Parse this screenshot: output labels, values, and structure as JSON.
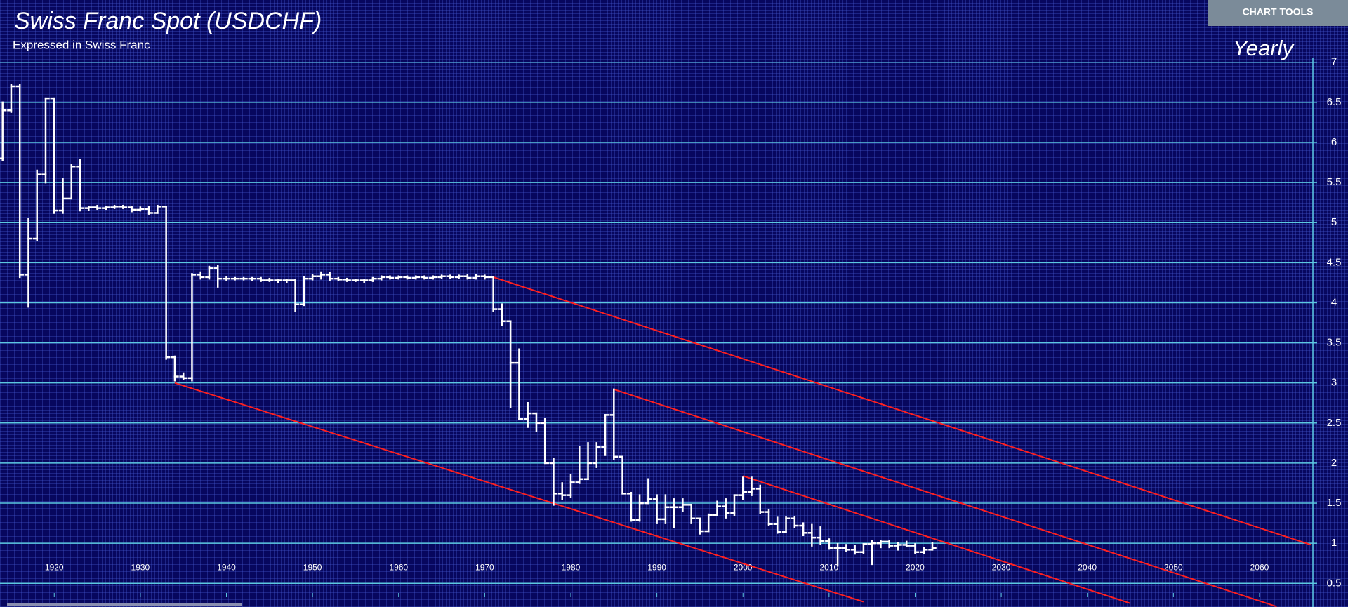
{
  "chart_data": {
    "type": "ohlc",
    "title": "Swiss Franc Spot (USDCHF)",
    "subtitle": "Expressed in Swiss Franc",
    "period": "Yearly",
    "color": "#ffffff",
    "x": [
      1914,
      1915,
      1916,
      1917,
      1918,
      1919,
      1920,
      1921,
      1922,
      1923,
      1924,
      1925,
      1926,
      1927,
      1928,
      1929,
      1930,
      1931,
      1932,
      1933,
      1934,
      1935,
      1936,
      1937,
      1938,
      1939,
      1940,
      1941,
      1942,
      1943,
      1944,
      1945,
      1946,
      1947,
      1948,
      1949,
      1950,
      1951,
      1952,
      1953,
      1954,
      1955,
      1956,
      1957,
      1958,
      1959,
      1960,
      1961,
      1962,
      1963,
      1964,
      1965,
      1966,
      1967,
      1968,
      1969,
      1970,
      1971,
      1972,
      1973,
      1974,
      1975,
      1976,
      1977,
      1978,
      1979,
      1980,
      1981,
      1982,
      1983,
      1984,
      1985,
      1986,
      1987,
      1988,
      1989,
      1990,
      1991,
      1992,
      1993,
      1994,
      1995,
      1996,
      1997,
      1998,
      1999,
      2000,
      2001,
      2002,
      2003,
      2004,
      2005,
      2006,
      2007,
      2008,
      2009,
      2010,
      2011,
      2012,
      2013,
      2014,
      2015,
      2016,
      2017,
      2018,
      2019,
      2020,
      2021,
      2022
    ],
    "values": [
      [
        5.8,
        6.5,
        5.78,
        6.4
      ],
      [
        6.4,
        6.72,
        6.38,
        6.7
      ],
      [
        6.7,
        6.72,
        4.32,
        4.35
      ],
      [
        4.35,
        5.05,
        3.95,
        4.8
      ],
      [
        4.8,
        5.65,
        4.78,
        5.6
      ],
      [
        5.6,
        6.55,
        5.5,
        6.55
      ],
      [
        6.55,
        6.55,
        5.12,
        5.15
      ],
      [
        5.15,
        5.55,
        5.12,
        5.3
      ],
      [
        5.3,
        5.72,
        5.3,
        5.7
      ],
      [
        5.7,
        5.78,
        5.15,
        5.18
      ],
      [
        5.18,
        5.2,
        5.16,
        5.19
      ],
      [
        5.19,
        5.21,
        5.17,
        5.18
      ],
      [
        5.18,
        5.2,
        5.17,
        5.19
      ],
      [
        5.19,
        5.21,
        5.18,
        5.2
      ],
      [
        5.2,
        5.21,
        5.18,
        5.19
      ],
      [
        5.19,
        5.2,
        5.14,
        5.16
      ],
      [
        5.16,
        5.19,
        5.15,
        5.17
      ],
      [
        5.17,
        5.2,
        5.11,
        5.12
      ],
      [
        5.12,
        5.21,
        5.12,
        5.2
      ],
      [
        5.2,
        5.2,
        3.3,
        3.32
      ],
      [
        3.32,
        3.33,
        3.03,
        3.08
      ],
      [
        3.08,
        3.12,
        3.05,
        3.06
      ],
      [
        3.06,
        4.36,
        3.03,
        4.35
      ],
      [
        4.35,
        4.38,
        4.3,
        4.32
      ],
      [
        4.32,
        4.45,
        4.3,
        4.43
      ],
      [
        4.43,
        4.46,
        4.2,
        4.3
      ],
      [
        4.3,
        4.32,
        4.28,
        4.3
      ],
      [
        4.3,
        4.31,
        4.29,
        4.3
      ],
      [
        4.3,
        4.31,
        4.29,
        4.3
      ],
      [
        4.3,
        4.31,
        4.28,
        4.3
      ],
      [
        4.3,
        4.31,
        4.27,
        4.28
      ],
      [
        4.28,
        4.3,
        4.27,
        4.28
      ],
      [
        4.28,
        4.29,
        4.26,
        4.28
      ],
      [
        4.28,
        4.29,
        4.26,
        4.28
      ],
      [
        4.28,
        4.29,
        3.9,
        3.98
      ],
      [
        3.98,
        4.32,
        3.97,
        4.3
      ],
      [
        4.3,
        4.35,
        4.29,
        4.33
      ],
      [
        4.33,
        4.38,
        4.3,
        4.35
      ],
      [
        4.35,
        4.37,
        4.28,
        4.3
      ],
      [
        4.3,
        4.31,
        4.28,
        4.29
      ],
      [
        4.29,
        4.3,
        4.27,
        4.28
      ],
      [
        4.28,
        4.29,
        4.27,
        4.28
      ],
      [
        4.28,
        4.29,
        4.26,
        4.28
      ],
      [
        4.28,
        4.31,
        4.27,
        4.3
      ],
      [
        4.3,
        4.33,
        4.29,
        4.32
      ],
      [
        4.32,
        4.33,
        4.3,
        4.31
      ],
      [
        4.31,
        4.33,
        4.3,
        4.32
      ],
      [
        4.32,
        4.33,
        4.3,
        4.31
      ],
      [
        4.31,
        4.33,
        4.3,
        4.32
      ],
      [
        4.32,
        4.33,
        4.3,
        4.31
      ],
      [
        4.31,
        4.33,
        4.3,
        4.32
      ],
      [
        4.32,
        4.34,
        4.31,
        4.33
      ],
      [
        4.33,
        4.34,
        4.31,
        4.32
      ],
      [
        4.32,
        4.34,
        4.31,
        4.33
      ],
      [
        4.33,
        4.35,
        4.3,
        4.31
      ],
      [
        4.31,
        4.35,
        4.3,
        4.33
      ],
      [
        4.33,
        4.34,
        4.3,
        4.32
      ],
      [
        4.32,
        4.32,
        3.9,
        3.92
      ],
      [
        3.92,
        3.98,
        3.72,
        3.77
      ],
      [
        3.77,
        3.77,
        2.7,
        3.25
      ],
      [
        3.25,
        3.42,
        2.55,
        2.55
      ],
      [
        2.55,
        2.75,
        2.45,
        2.62
      ],
      [
        2.62,
        2.62,
        2.4,
        2.5
      ],
      [
        2.5,
        2.55,
        2.0,
        2.0
      ],
      [
        2.0,
        2.05,
        1.48,
        1.62
      ],
      [
        1.62,
        1.75,
        1.55,
        1.6
      ],
      [
        1.6,
        1.85,
        1.58,
        1.76
      ],
      [
        1.76,
        2.2,
        1.75,
        1.8
      ],
      [
        1.8,
        2.25,
        1.8,
        2.0
      ],
      [
        2.0,
        2.25,
        1.95,
        2.2
      ],
      [
        2.2,
        2.6,
        2.1,
        2.6
      ],
      [
        2.6,
        2.92,
        2.05,
        2.08
      ],
      [
        2.08,
        2.08,
        1.62,
        1.62
      ],
      [
        1.62,
        1.63,
        1.28,
        1.29
      ],
      [
        1.29,
        1.6,
        1.28,
        1.5
      ],
      [
        1.5,
        1.8,
        1.5,
        1.55
      ],
      [
        1.55,
        1.6,
        1.25,
        1.3
      ],
      [
        1.3,
        1.6,
        1.25,
        1.45
      ],
      [
        1.45,
        1.55,
        1.2,
        1.45
      ],
      [
        1.45,
        1.55,
        1.4,
        1.48
      ],
      [
        1.48,
        1.48,
        1.25,
        1.31
      ],
      [
        1.31,
        1.31,
        1.12,
        1.15
      ],
      [
        1.15,
        1.36,
        1.15,
        1.35
      ],
      [
        1.35,
        1.52,
        1.35,
        1.46
      ],
      [
        1.46,
        1.55,
        1.32,
        1.38
      ],
      [
        1.38,
        1.6,
        1.35,
        1.6
      ],
      [
        1.6,
        1.82,
        1.55,
        1.64
      ],
      [
        1.64,
        1.82,
        1.6,
        1.68
      ],
      [
        1.68,
        1.72,
        1.38,
        1.39
      ],
      [
        1.39,
        1.42,
        1.23,
        1.24
      ],
      [
        1.24,
        1.32,
        1.13,
        1.14
      ],
      [
        1.14,
        1.33,
        1.14,
        1.31
      ],
      [
        1.31,
        1.33,
        1.2,
        1.22
      ],
      [
        1.22,
        1.25,
        1.1,
        1.13
      ],
      [
        1.13,
        1.23,
        0.97,
        1.07
      ],
      [
        1.07,
        1.2,
        0.99,
        1.03
      ],
      [
        1.03,
        1.05,
        0.93,
        0.94
      ],
      [
        0.94,
        0.99,
        0.72,
        0.94
      ],
      [
        0.94,
        0.98,
        0.9,
        0.92
      ],
      [
        0.92,
        0.97,
        0.87,
        0.89
      ],
      [
        0.89,
        0.99,
        0.88,
        0.99
      ],
      [
        0.99,
        1.03,
        0.74,
        1.0
      ],
      [
        1.0,
        1.03,
        0.95,
        1.02
      ],
      [
        1.02,
        1.03,
        0.95,
        0.97
      ],
      [
        0.97,
        1.0,
        0.92,
        0.98
      ],
      [
        0.98,
        1.02,
        0.96,
        0.97
      ],
      [
        0.97,
        0.99,
        0.88,
        0.89
      ],
      [
        0.89,
        0.94,
        0.88,
        0.92
      ],
      [
        0.92,
        1.0,
        0.92,
        0.94
      ]
    ],
    "trend_lines": [
      {
        "color": "#ff2020",
        "x": [
          1934,
          2014
        ],
        "values": [
          3.0,
          0.27
        ]
      },
      {
        "color": "#ff2020",
        "x": [
          1971,
          2066
        ],
        "values": [
          4.32,
          0.98
        ]
      },
      {
        "color": "#ff2020",
        "x": [
          1985,
          2062
        ],
        "values": [
          2.92,
          0.21
        ]
      },
      {
        "color": "#ff2020",
        "x": [
          2000,
          2045
        ],
        "values": [
          1.84,
          0.25
        ]
      }
    ],
    "xlim": [
      1913.7,
      2066.2
    ],
    "ylim": [
      0.38,
      7.05
    ],
    "xticks": [
      1920,
      1930,
      1940,
      1950,
      1960,
      1970,
      1980,
      1990,
      2000,
      2010,
      2020,
      2030,
      2040,
      2050,
      2060
    ],
    "yticks": [
      0.5,
      1,
      1.5,
      2,
      2.5,
      3,
      3.5,
      4,
      4.5,
      5,
      5.5,
      6,
      6.5,
      7
    ],
    "grid": true
  },
  "toolbar": {
    "button": "CHART TOOLS"
  }
}
